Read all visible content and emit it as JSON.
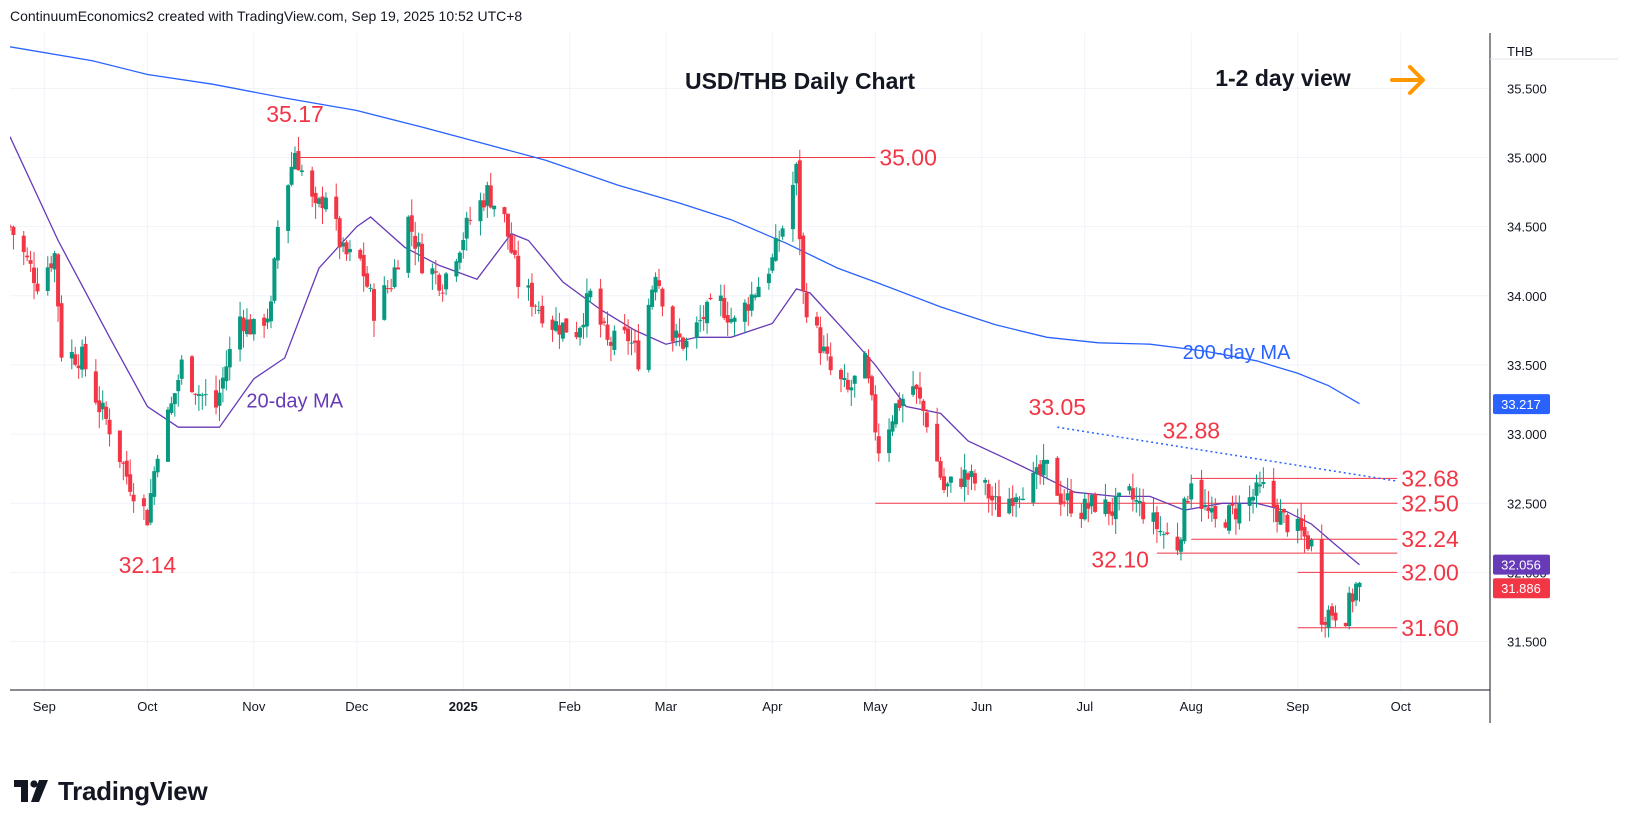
{
  "header": {
    "created_text": "ContinuumEconomics2 created with TradingView.com, Sep 19, 2025 10:52 UTC+8"
  },
  "footer": {
    "brand": "TradingView"
  },
  "chart_data": {
    "type": "candlestick",
    "title": "USD/THB Daily Chart",
    "subtitle": "1-2 day view",
    "currency_label": "THB",
    "y_axis_side": "right",
    "ylim": [
      31.15,
      35.9
    ],
    "y_ticks": [
      "35.500",
      "35.000",
      "34.500",
      "34.000",
      "33.500",
      "33.000",
      "32.500",
      "32.000",
      "31.500"
    ],
    "x_ticks": [
      "Sep",
      "Oct",
      "Nov",
      "Dec",
      "2025",
      "Feb",
      "Mar",
      "Apr",
      "May",
      "Jun",
      "Jul",
      "Aug",
      "Sep",
      "Oct"
    ],
    "x_tick_dates": [
      "2024-09-01",
      "2024-10-01",
      "2024-11-01",
      "2024-12-01",
      "2025-01-01",
      "2025-02-01",
      "2025-03-01",
      "2025-04-01",
      "2025-05-01",
      "2025-06-01",
      "2025-07-01",
      "2025-08-01",
      "2025-09-01",
      "2025-10-01"
    ],
    "xlim": [
      "2024-08-22",
      "2025-10-27"
    ],
    "price_badges": [
      {
        "value": "33.217",
        "color": "#2962ff"
      },
      {
        "value": "32.056",
        "color": "#673ab7"
      },
      {
        "value": "31.886",
        "color": "#f23645"
      }
    ],
    "moving_averages": [
      {
        "name": "200-day MA",
        "color": "#2962ff",
        "points": [
          [
            "2024-08-22",
            35.8
          ],
          [
            "2024-09-15",
            35.7
          ],
          [
            "2024-10-01",
            35.6
          ],
          [
            "2024-10-20",
            35.53
          ],
          [
            "2024-11-10",
            35.43
          ],
          [
            "2024-12-01",
            35.34
          ],
          [
            "2024-12-20",
            35.22
          ],
          [
            "2025-01-10",
            35.08
          ],
          [
            "2025-01-25",
            34.98
          ],
          [
            "2025-02-15",
            34.8
          ],
          [
            "2025-03-05",
            34.67
          ],
          [
            "2025-03-20",
            34.55
          ],
          [
            "2025-04-05",
            34.38
          ],
          [
            "2025-04-20",
            34.2
          ],
          [
            "2025-05-01",
            34.1
          ],
          [
            "2025-05-20",
            33.92
          ],
          [
            "2025-06-05",
            33.79
          ],
          [
            "2025-06-20",
            33.7
          ],
          [
            "2025-07-05",
            33.66
          ],
          [
            "2025-07-20",
            33.65
          ],
          [
            "2025-08-05",
            33.6
          ],
          [
            "2025-08-20",
            33.53
          ],
          [
            "2025-09-01",
            33.44
          ],
          [
            "2025-09-10",
            33.35
          ],
          [
            "2025-09-19",
            33.22
          ]
        ]
      },
      {
        "name": "20-day MA",
        "color": "#673ab7",
        "points": [
          [
            "2024-08-22",
            35.15
          ],
          [
            "2024-09-05",
            34.4
          ],
          [
            "2024-09-20",
            33.7
          ],
          [
            "2024-10-01",
            33.2
          ],
          [
            "2024-10-10",
            33.05
          ],
          [
            "2024-10-22",
            33.05
          ],
          [
            "2024-11-01",
            33.4
          ],
          [
            "2024-11-10",
            33.55
          ],
          [
            "2024-11-20",
            34.2
          ],
          [
            "2024-12-01",
            34.5
          ],
          [
            "2024-12-05",
            34.57
          ],
          [
            "2024-12-15",
            34.35
          ],
          [
            "2024-12-25",
            34.22
          ],
          [
            "2025-01-05",
            34.12
          ],
          [
            "2025-01-15",
            34.45
          ],
          [
            "2025-01-20",
            34.4
          ],
          [
            "2025-01-30",
            34.1
          ],
          [
            "2025-02-10",
            33.9
          ],
          [
            "2025-02-20",
            33.75
          ],
          [
            "2025-03-01",
            33.65
          ],
          [
            "2025-03-10",
            33.7
          ],
          [
            "2025-03-20",
            33.7
          ],
          [
            "2025-04-01",
            33.8
          ],
          [
            "2025-04-08",
            34.05
          ],
          [
            "2025-04-12",
            34.02
          ],
          [
            "2025-04-22",
            33.75
          ],
          [
            "2025-05-01",
            33.5
          ],
          [
            "2025-05-10",
            33.2
          ],
          [
            "2025-05-20",
            33.15
          ],
          [
            "2025-05-28",
            32.95
          ],
          [
            "2025-06-10",
            32.8
          ],
          [
            "2025-06-20",
            32.68
          ],
          [
            "2025-06-28",
            32.58
          ],
          [
            "2025-07-10",
            32.55
          ],
          [
            "2025-07-20",
            32.55
          ],
          [
            "2025-07-30",
            32.45
          ],
          [
            "2025-08-10",
            32.5
          ],
          [
            "2025-08-20",
            32.5
          ],
          [
            "2025-08-28",
            32.45
          ],
          [
            "2025-09-05",
            32.35
          ],
          [
            "2025-09-12",
            32.2
          ],
          [
            "2025-09-19",
            32.056
          ]
        ]
      }
    ],
    "candles_ohlc_close_path": [
      [
        "2024-08-22",
        34.5
      ],
      [
        "2024-08-30",
        34.1
      ],
      [
        "2024-09-04",
        34.3
      ],
      [
        "2024-09-06",
        33.6
      ],
      [
        "2024-09-12",
        33.55
      ],
      [
        "2024-09-17",
        33.2
      ],
      [
        "2024-09-20",
        33.05
      ],
      [
        "2024-09-25",
        32.7
      ],
      [
        "2024-10-01",
        32.4
      ],
      [
        "2024-10-04",
        32.9
      ],
      [
        "2024-10-08",
        33.2
      ],
      [
        "2024-10-11",
        33.5
      ],
      [
        "2024-10-16",
        33.3
      ],
      [
        "2024-10-21",
        33.2
      ],
      [
        "2024-10-24",
        33.5
      ],
      [
        "2024-10-28",
        33.85
      ],
      [
        "2024-11-01",
        33.75
      ],
      [
        "2024-11-06",
        33.9
      ],
      [
        "2024-11-08",
        34.5
      ],
      [
        "2024-11-13",
        35.05
      ],
      [
        "2024-11-15",
        34.9
      ],
      [
        "2024-11-19",
        34.6
      ],
      [
        "2024-11-22",
        34.75
      ],
      [
        "2024-11-27",
        34.3
      ],
      [
        "2024-12-02",
        34.25
      ],
      [
        "2024-12-06",
        33.9
      ],
      [
        "2024-12-11",
        34.1
      ],
      [
        "2024-12-16",
        34.55
      ],
      [
        "2024-12-20",
        34.25
      ],
      [
        "2024-12-26",
        34.1
      ],
      [
        "2025-01-03",
        34.55
      ],
      [
        "2025-01-08",
        34.75
      ],
      [
        "2025-01-13",
        34.55
      ],
      [
        "2025-01-17",
        34.1
      ],
      [
        "2025-01-22",
        33.95
      ],
      [
        "2025-01-27",
        33.8
      ],
      [
        "2025-02-03",
        33.75
      ],
      [
        "2025-02-07",
        34.0
      ],
      [
        "2025-02-12",
        33.65
      ],
      [
        "2025-02-18",
        33.7
      ],
      [
        "2025-02-21",
        33.55
      ],
      [
        "2025-02-26",
        34.2
      ],
      [
        "2025-03-03",
        33.7
      ],
      [
        "2025-03-07",
        33.65
      ],
      [
        "2025-03-12",
        33.85
      ],
      [
        "2025-03-17",
        33.95
      ],
      [
        "2025-03-21",
        33.8
      ],
      [
        "2025-03-26",
        34.0
      ],
      [
        "2025-04-01",
        34.25
      ],
      [
        "2025-04-04",
        34.5
      ],
      [
        "2025-04-08",
        34.9
      ],
      [
        "2025-04-10",
        34.0
      ],
      [
        "2025-04-15",
        33.65
      ],
      [
        "2025-04-18",
        33.45
      ],
      [
        "2025-04-23",
        33.3
      ],
      [
        "2025-04-28",
        33.5
      ],
      [
        "2025-05-02",
        32.9
      ],
      [
        "2025-05-07",
        33.2
      ],
      [
        "2025-05-12",
        33.35
      ],
      [
        "2025-05-16",
        33.1
      ],
      [
        "2025-05-21",
        32.6
      ],
      [
        "2025-05-27",
        32.7
      ],
      [
        "2025-06-02",
        32.6
      ],
      [
        "2025-06-06",
        32.45
      ],
      [
        "2025-06-11",
        32.6
      ],
      [
        "2025-06-16",
        32.65
      ],
      [
        "2025-06-20",
        32.75
      ],
      [
        "2025-06-24",
        32.55
      ],
      [
        "2025-06-30",
        32.45
      ],
      [
        "2025-07-04",
        32.5
      ],
      [
        "2025-07-09",
        32.45
      ],
      [
        "2025-07-14",
        32.55
      ],
      [
        "2025-07-18",
        32.45
      ],
      [
        "2025-07-23",
        32.3
      ],
      [
        "2025-07-28",
        32.2
      ],
      [
        "2025-08-01",
        32.7
      ],
      [
        "2025-08-05",
        32.45
      ],
      [
        "2025-08-08",
        32.35
      ],
      [
        "2025-08-14",
        32.45
      ],
      [
        "2025-08-19",
        32.55
      ],
      [
        "2025-08-22",
        32.6
      ],
      [
        "2025-08-27",
        32.4
      ],
      [
        "2025-09-01",
        32.3
      ],
      [
        "2025-09-05",
        32.2
      ],
      [
        "2025-09-08",
        31.7
      ],
      [
        "2025-09-11",
        31.72
      ],
      [
        "2025-09-15",
        31.7
      ],
      [
        "2025-09-18",
        31.9
      ],
      [
        "2025-09-19",
        31.886
      ]
    ],
    "horizontal_levels": [
      {
        "value": 35.0,
        "label": "35.00",
        "from": "2024-11-13",
        "to": "2025-05-01"
      },
      {
        "value": 32.68,
        "label": "32.68",
        "from": "2025-08-01",
        "to": "2025-09-30"
      },
      {
        "value": 32.5,
        "label": "32.50",
        "from": "2025-05-01",
        "to": "2025-09-30"
      },
      {
        "value": 32.24,
        "label": "32.24",
        "from": "2025-08-01",
        "to": "2025-09-30"
      },
      {
        "value": 32.14,
        "label": "",
        "from": "2025-07-22",
        "to": "2025-09-30"
      },
      {
        "value": 32.0,
        "label": "32.00",
        "from": "2025-09-01",
        "to": "2025-09-30"
      },
      {
        "value": 31.6,
        "label": "31.60",
        "from": "2025-09-01",
        "to": "2025-09-30"
      }
    ],
    "trendline": {
      "from": [
        "2025-06-23",
        33.05
      ],
      "to": [
        "2025-09-30",
        32.66
      ],
      "style": "dotted",
      "color": "#2962ff"
    },
    "annotations": [
      {
        "text": "35.17",
        "date": "2024-11-13",
        "value": 35.17
      },
      {
        "text": "32.14",
        "date": "2024-10-01",
        "value": 32.14
      },
      {
        "text": "33.05",
        "date": "2025-06-23",
        "value": 33.05
      },
      {
        "text": "32.88",
        "date": "2025-08-01",
        "value": 32.88
      },
      {
        "text": "32.10",
        "date": "2025-07-22",
        "value": 32.1
      },
      {
        "text": "20-day MA",
        "date": "2024-11-10",
        "value": 33.25
      },
      {
        "text": "200-day MA",
        "date": "2025-08-20",
        "value": 33.6
      }
    ],
    "colors": {
      "up": "#089981",
      "down": "#f23645",
      "level": "#f23645",
      "ma200": "#2962ff",
      "ma20": "#673ab7",
      "arrow": "#ff9800"
    },
    "grid": true
  }
}
